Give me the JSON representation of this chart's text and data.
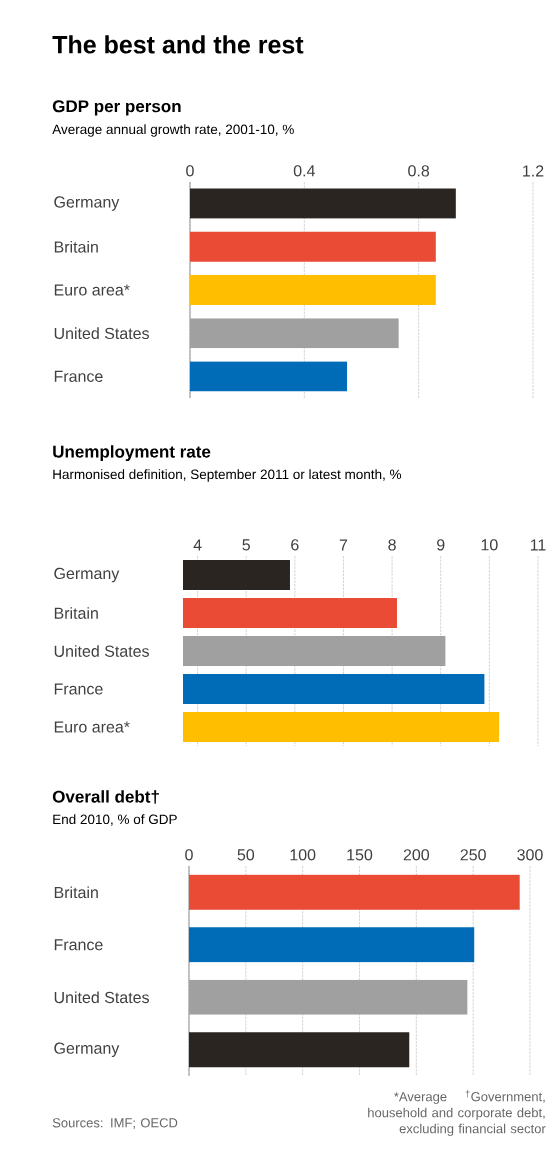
{
  "chart_data": [
    {
      "type": "other",
      "title": "The best and the rest"
    },
    {
      "type": "bar",
      "orientation": "horizontal",
      "title": "GDP per person",
      "subtitle": "Average annual growth rate, 2001-10, %",
      "categories": [
        "Germany",
        "Britain",
        "Euro area*",
        "United States",
        "France"
      ],
      "values": [
        0.93,
        0.86,
        0.86,
        0.73,
        0.55
      ],
      "colors": [
        "#2a2520",
        "#e94b35",
        "#ffbf00",
        "#a0a0a0",
        "#006bb6"
      ],
      "xlim": [
        0,
        1.2
      ],
      "xticks": [
        0,
        0.4,
        0.8,
        1.2
      ],
      "grid": "x"
    },
    {
      "type": "bar",
      "orientation": "horizontal",
      "title": "Unemployment rate",
      "subtitle": "Harmonised definition, September 2011 or latest month, %",
      "categories": [
        "Germany",
        "Britain",
        "United States",
        "France",
        "Euro area*"
      ],
      "values": [
        5.9,
        8.1,
        9.1,
        9.9,
        10.2
      ],
      "colors": [
        "#2a2520",
        "#e94b35",
        "#a0a0a0",
        "#006bb6",
        "#ffbf00"
      ],
      "xlim": [
        3.7,
        11
      ],
      "xticks": [
        4,
        5,
        6,
        7,
        8,
        9,
        10,
        11
      ],
      "grid": "x"
    },
    {
      "type": "bar",
      "orientation": "horizontal",
      "title": "Overall debt†",
      "subtitle": "End 2010, % of GDP",
      "categories": [
        "Britain",
        "France",
        "United States",
        "Germany"
      ],
      "values": [
        291,
        251,
        245,
        194
      ],
      "colors": [
        "#e94b35",
        "#006bb6",
        "#a0a0a0",
        "#2a2520"
      ],
      "xlim": [
        0,
        300
      ],
      "xticks": [
        0,
        50,
        100,
        150,
        200,
        250,
        300
      ],
      "grid": "x",
      "annotations": [
        "*Average",
        "$^{†}$Government, household and corporate debt, excluding financial sector",
        "Sources: IMF; OECD"
      ]
    }
  ]
}
